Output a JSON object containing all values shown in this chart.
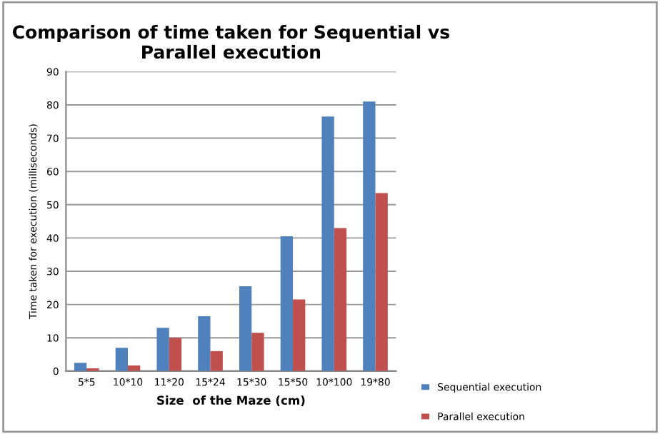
{
  "chart_data": {
    "type": "bar",
    "title": "Comparison of time taken for Sequential vs Parallel execution",
    "xlabel": "Size  of the Maze (cm)",
    "ylabel": "Time taken for execution (milliseconds)",
    "categories": [
      "5*5",
      "10*10",
      "11*20",
      "15*24",
      "15*30",
      "15*50",
      "10*100",
      "19*80"
    ],
    "series": [
      {
        "name": "Sequential execution",
        "color": "#4f81bd",
        "values": [
          2.5,
          7,
          13,
          16.5,
          25.5,
          40.5,
          76.5,
          81
        ]
      },
      {
        "name": "Parallel execution",
        "color": "#c0504d",
        "values": [
          0.8,
          1.7,
          10,
          6,
          11.5,
          21.5,
          43,
          53.5
        ]
      }
    ],
    "ylim": [
      0,
      90
    ],
    "yticks": [
      0,
      10,
      20,
      30,
      40,
      50,
      60,
      70,
      80,
      90
    ],
    "grid": "y",
    "legend": "bottom right"
  }
}
